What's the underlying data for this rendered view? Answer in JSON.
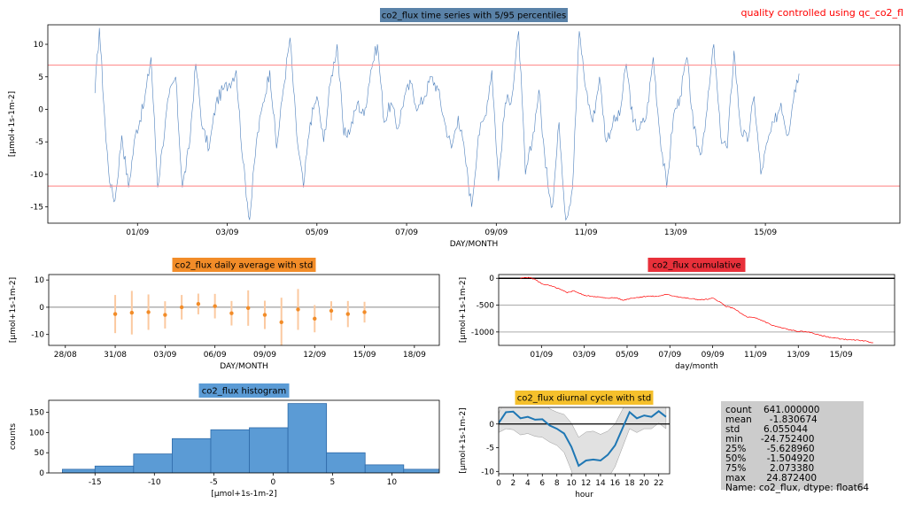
{
  "note": "quality controlled using qc_co2_fl",
  "colors": {
    "ts_line": "#4f81bd",
    "ts_title_bg": "#5a82a8",
    "pct_line": "#ff9999",
    "daily_title_bg": "#f28c28",
    "daily_points": "#f28c28",
    "daily_err": "#fbc9a0",
    "cum_title_bg": "#e8303a",
    "cum_line": "#ff0000",
    "hist_title_bg": "#5b9bd5",
    "hist_bar": "#5b9bd5",
    "hist_edge": "#2e6aa8",
    "diurnal_title_bg": "#f5c02c",
    "diurnal_line": "#1f77b4",
    "diurnal_band": "#d9d9d9",
    "stats_bg": "#cccccc"
  },
  "chart_data": [
    {
      "id": "timeseries",
      "type": "line",
      "title": "co2_flux time series with 5/95 percentiles",
      "xlabel": "DAY/MONTH",
      "ylabel": "[µmol+1s-1m-2]",
      "xlim": [
        -2.0,
        17.0
      ],
      "ylim": [
        -17.5,
        13.0
      ],
      "xticks": [
        {
          "x": 0,
          "label": "01/09"
        },
        {
          "x": 2,
          "label": "03/09"
        },
        {
          "x": 4,
          "label": "05/09"
        },
        {
          "x": 6,
          "label": "07/09"
        },
        {
          "x": 8,
          "label": "09/09"
        },
        {
          "x": 10,
          "label": "11/09"
        },
        {
          "x": 12,
          "label": "13/09"
        },
        {
          "x": 14,
          "label": "15/09"
        }
      ],
      "yticks": [
        10,
        5,
        0,
        -5,
        -10,
        -15
      ],
      "percentiles": {
        "p95": 6.8,
        "p5": -11.8
      },
      "keypoints": [
        [
          -0.95,
          2.5
        ],
        [
          -0.85,
          12.5
        ],
        [
          -0.7,
          -5
        ],
        [
          -0.6,
          -12
        ],
        [
          -0.5,
          -14
        ],
        [
          -0.35,
          -4
        ],
        [
          -0.2,
          -12
        ],
        [
          -0.05,
          -4
        ],
        [
          0.15,
          1
        ],
        [
          0.3,
          8
        ],
        [
          0.45,
          -12
        ],
        [
          0.55,
          -6
        ],
        [
          0.7,
          2
        ],
        [
          0.85,
          5
        ],
        [
          1.0,
          -12
        ],
        [
          1.15,
          -6
        ],
        [
          1.3,
          7
        ],
        [
          1.45,
          -3
        ],
        [
          1.6,
          -6
        ],
        [
          1.75,
          1
        ],
        [
          1.9,
          3
        ],
        [
          2.05,
          4
        ],
        [
          2.2,
          6
        ],
        [
          2.35,
          -8
        ],
        [
          2.5,
          -17
        ],
        [
          2.65,
          -5
        ],
        [
          2.8,
          1
        ],
        [
          2.95,
          6
        ],
        [
          3.1,
          -6
        ],
        [
          3.25,
          3
        ],
        [
          3.4,
          11
        ],
        [
          3.55,
          -4
        ],
        [
          3.7,
          -12
        ],
        [
          3.85,
          -2
        ],
        [
          4.0,
          2
        ],
        [
          4.15,
          -5
        ],
        [
          4.3,
          4
        ],
        [
          4.45,
          10
        ],
        [
          4.6,
          -4
        ],
        [
          4.75,
          -3
        ],
        [
          4.9,
          1
        ],
        [
          5.05,
          -1
        ],
        [
          5.2,
          6
        ],
        [
          5.35,
          10
        ],
        [
          5.5,
          -2
        ],
        [
          5.65,
          1
        ],
        [
          5.8,
          -3
        ],
        [
          5.95,
          2
        ],
        [
          6.1,
          4
        ],
        [
          6.25,
          0
        ],
        [
          6.4,
          2
        ],
        [
          6.55,
          5
        ],
        [
          6.7,
          3
        ],
        [
          6.85,
          -2
        ],
        [
          7.0,
          -6
        ],
        [
          7.15,
          -1
        ],
        [
          7.3,
          -7
        ],
        [
          7.45,
          -15
        ],
        [
          7.6,
          -4
        ],
        [
          7.75,
          -1
        ],
        [
          7.9,
          6
        ],
        [
          8.05,
          -11
        ],
        [
          8.2,
          1
        ],
        [
          8.35,
          2
        ],
        [
          8.5,
          12
        ],
        [
          8.65,
          -10
        ],
        [
          8.8,
          -5
        ],
        [
          8.95,
          3
        ],
        [
          9.1,
          -9
        ],
        [
          9.25,
          -15
        ],
        [
          9.4,
          -2
        ],
        [
          9.55,
          -17
        ],
        [
          9.7,
          -12
        ],
        [
          9.85,
          12
        ],
        [
          10.0,
          3
        ],
        [
          10.15,
          -2
        ],
        [
          10.3,
          5
        ],
        [
          10.45,
          -5
        ],
        [
          10.6,
          -2
        ],
        [
          10.75,
          -1
        ],
        [
          10.9,
          7
        ],
        [
          11.05,
          -2
        ],
        [
          11.2,
          -3
        ],
        [
          11.35,
          -1
        ],
        [
          11.5,
          8
        ],
        [
          11.65,
          -4
        ],
        [
          11.8,
          -12
        ],
        [
          11.95,
          -1
        ],
        [
          12.1,
          2
        ],
        [
          12.25,
          8
        ],
        [
          12.4,
          -3
        ],
        [
          12.55,
          -7
        ],
        [
          12.7,
          0
        ],
        [
          12.85,
          10
        ],
        [
          13.0,
          -4
        ],
        [
          13.15,
          -6
        ],
        [
          13.3,
          9
        ],
        [
          13.45,
          -3
        ],
        [
          13.6,
          -5
        ],
        [
          13.75,
          2
        ],
        [
          13.9,
          -10
        ],
        [
          14.05,
          -5
        ],
        [
          14.2,
          -2
        ],
        [
          14.35,
          1
        ],
        [
          14.5,
          -4
        ],
        [
          14.65,
          3
        ],
        [
          14.75,
          5.5
        ]
      ]
    },
    {
      "id": "daily",
      "type": "scatter",
      "title": "co2_flux daily average with std",
      "xlabel": "DAY/MONTH",
      "ylabel": "[µmol+1s-1m-2]",
      "xlim": [
        -4.0,
        19.5
      ],
      "ylim": [
        -14.0,
        12.0
      ],
      "xticks": [
        {
          "x": -3,
          "label": "28/08"
        },
        {
          "x": 0,
          "label": "31/08"
        },
        {
          "x": 3,
          "label": "03/09"
        },
        {
          "x": 6,
          "label": "06/09"
        },
        {
          "x": 9,
          "label": "09/09"
        },
        {
          "x": 12,
          "label": "12/09"
        },
        {
          "x": 15,
          "label": "15/09"
        },
        {
          "x": 18,
          "label": "18/09"
        }
      ],
      "yticks": [
        10,
        0,
        -10
      ],
      "points": [
        {
          "x": 0,
          "mean": -2.5,
          "std": 7.0
        },
        {
          "x": 1,
          "mean": -2.0,
          "std": 8.0
        },
        {
          "x": 2,
          "mean": -1.8,
          "std": 6.5
        },
        {
          "x": 3,
          "mean": -2.8,
          "std": 5.0
        },
        {
          "x": 4,
          "mean": 0.0,
          "std": 4.5
        },
        {
          "x": 5,
          "mean": 1.2,
          "std": 3.8
        },
        {
          "x": 6,
          "mean": 0.4,
          "std": 4.5
        },
        {
          "x": 7,
          "mean": -2.2,
          "std": 4.5
        },
        {
          "x": 8,
          "mean": -0.3,
          "std": 6.5
        },
        {
          "x": 9,
          "mean": -2.8,
          "std": 5.2
        },
        {
          "x": 10,
          "mean": -5.5,
          "std": 9.0
        },
        {
          "x": 11,
          "mean": -0.8,
          "std": 7.5
        },
        {
          "x": 12,
          "mean": -4.2,
          "std": 5.0
        },
        {
          "x": 13,
          "mean": -1.3,
          "std": 3.5
        },
        {
          "x": 14,
          "mean": -2.5,
          "std": 4.8
        },
        {
          "x": 15,
          "mean": -1.8,
          "std": 3.8
        }
      ]
    },
    {
      "id": "cumulative",
      "type": "line",
      "title": "co2_flux cumulative",
      "xlabel": "day/month",
      "ylabel": "[µmol+1s-1m-2]",
      "xlim": [
        -2.0,
        16.5
      ],
      "ylim": [
        -1250,
        70
      ],
      "xticks": [
        {
          "x": 0,
          "label": "01/09"
        },
        {
          "x": 2,
          "label": "03/09"
        },
        {
          "x": 4,
          "label": "05/09"
        },
        {
          "x": 6,
          "label": "07/09"
        },
        {
          "x": 8,
          "label": "09/09"
        },
        {
          "x": 10,
          "label": "11/09"
        },
        {
          "x": 12,
          "label": "13/09"
        },
        {
          "x": 14,
          "label": "15/09"
        }
      ],
      "yticks": [
        0,
        -500,
        -1000
      ],
      "hlines": [
        0,
        -500,
        -1000
      ],
      "keypoints": [
        [
          -1.0,
          0
        ],
        [
          -0.6,
          20
        ],
        [
          -0.3,
          -20
        ],
        [
          0.0,
          -100
        ],
        [
          0.5,
          -150
        ],
        [
          0.9,
          -210
        ],
        [
          1.2,
          -270
        ],
        [
          1.5,
          -230
        ],
        [
          2.0,
          -320
        ],
        [
          2.5,
          -340
        ],
        [
          3.0,
          -370
        ],
        [
          3.5,
          -360
        ],
        [
          3.8,
          -410
        ],
        [
          4.2,
          -370
        ],
        [
          4.6,
          -350
        ],
        [
          5.0,
          -330
        ],
        [
          5.4,
          -340
        ],
        [
          5.8,
          -300
        ],
        [
          6.2,
          -330
        ],
        [
          6.6,
          -360
        ],
        [
          7.0,
          -380
        ],
        [
          7.4,
          -400
        ],
        [
          7.8,
          -390
        ],
        [
          8.0,
          -370
        ],
        [
          8.3,
          -430
        ],
        [
          8.6,
          -520
        ],
        [
          9.0,
          -560
        ],
        [
          9.3,
          -650
        ],
        [
          9.6,
          -720
        ],
        [
          10.0,
          -740
        ],
        [
          10.4,
          -800
        ],
        [
          10.8,
          -880
        ],
        [
          11.2,
          -920
        ],
        [
          11.6,
          -960
        ],
        [
          12.0,
          -990
        ],
        [
          12.5,
          -1000
        ],
        [
          13.0,
          -1060
        ],
        [
          13.5,
          -1100
        ],
        [
          14.0,
          -1130
        ],
        [
          14.5,
          -1150
        ],
        [
          15.0,
          -1160
        ],
        [
          15.5,
          -1200
        ]
      ]
    },
    {
      "id": "histogram",
      "type": "bar",
      "title": "co2_flux histogram",
      "xlabel": "[µmol+1s-1m-2]",
      "ylabel": "counts",
      "xlim": [
        -18.9,
        14.0
      ],
      "ylim": [
        0,
        180
      ],
      "xticks": [
        -15,
        -10,
        -5,
        0,
        5,
        10
      ],
      "yticks": [
        0,
        50,
        100,
        150
      ],
      "bins": [
        {
          "x0": -17.75,
          "x1": -15.0,
          "count": 9
        },
        {
          "x0": -15.0,
          "x1": -11.75,
          "count": 17
        },
        {
          "x0": -11.75,
          "x1": -8.5,
          "count": 47
        },
        {
          "x0": -8.5,
          "x1": -5.25,
          "count": 85
        },
        {
          "x0": -5.25,
          "x1": -2.0,
          "count": 107
        },
        {
          "x0": -2.0,
          "x1": 1.25,
          "count": 112
        },
        {
          "x0": 1.25,
          "x1": 4.5,
          "count": 172
        },
        {
          "x0": 4.5,
          "x1": 7.75,
          "count": 50
        },
        {
          "x0": 7.75,
          "x1": 11.0,
          "count": 20
        },
        {
          "x0": 11.0,
          "x1": 14.25,
          "count": 9
        }
      ]
    },
    {
      "id": "diurnal",
      "type": "line",
      "title": "co2_flux diurnal cycle with std",
      "xlabel": "hour",
      "ylabel": "[µmol+1s-1m-2]",
      "xlim": [
        0,
        23.5
      ],
      "ylim": [
        -10.5,
        3.5
      ],
      "xticks": [
        0,
        2,
        4,
        6,
        8,
        10,
        12,
        14,
        16,
        18,
        20,
        22
      ],
      "yticks": [
        0,
        -5,
        -10
      ],
      "hours": [
        0,
        1,
        2,
        3,
        4,
        5,
        6,
        7,
        8,
        9,
        10,
        11,
        12,
        13,
        14,
        15,
        16,
        17,
        18,
        19,
        20,
        21,
        22,
        23
      ],
      "mean": [
        0.2,
        2.5,
        2.6,
        1.2,
        1.5,
        0.9,
        1.0,
        -0.3,
        -1.0,
        -2.0,
        -4.8,
        -8.8,
        -7.7,
        -7.5,
        -7.7,
        -6.5,
        -4.5,
        -1.0,
        2.5,
        1.2,
        1.8,
        1.5,
        2.7,
        1.5
      ],
      "std": [
        2.0,
        3.5,
        3.8,
        3.5,
        3.5,
        3.5,
        3.8,
        3.5,
        3.5,
        4.0,
        5.0,
        6.0,
        6.0,
        6.0,
        5.5,
        5.0,
        4.5,
        4.0,
        3.5,
        3.0,
        2.8,
        2.5,
        2.5,
        2.5
      ]
    }
  ],
  "stats_box": {
    "lines": [
      "count    641.000000",
      "mean      -1.830674",
      "std        6.055044",
      "min      -24.752400",
      "25%       -5.628960",
      "50%       -1.504920",
      "75%        2.073380",
      "max       24.872400",
      "Name: co2_flux, dtype: float64"
    ]
  }
}
